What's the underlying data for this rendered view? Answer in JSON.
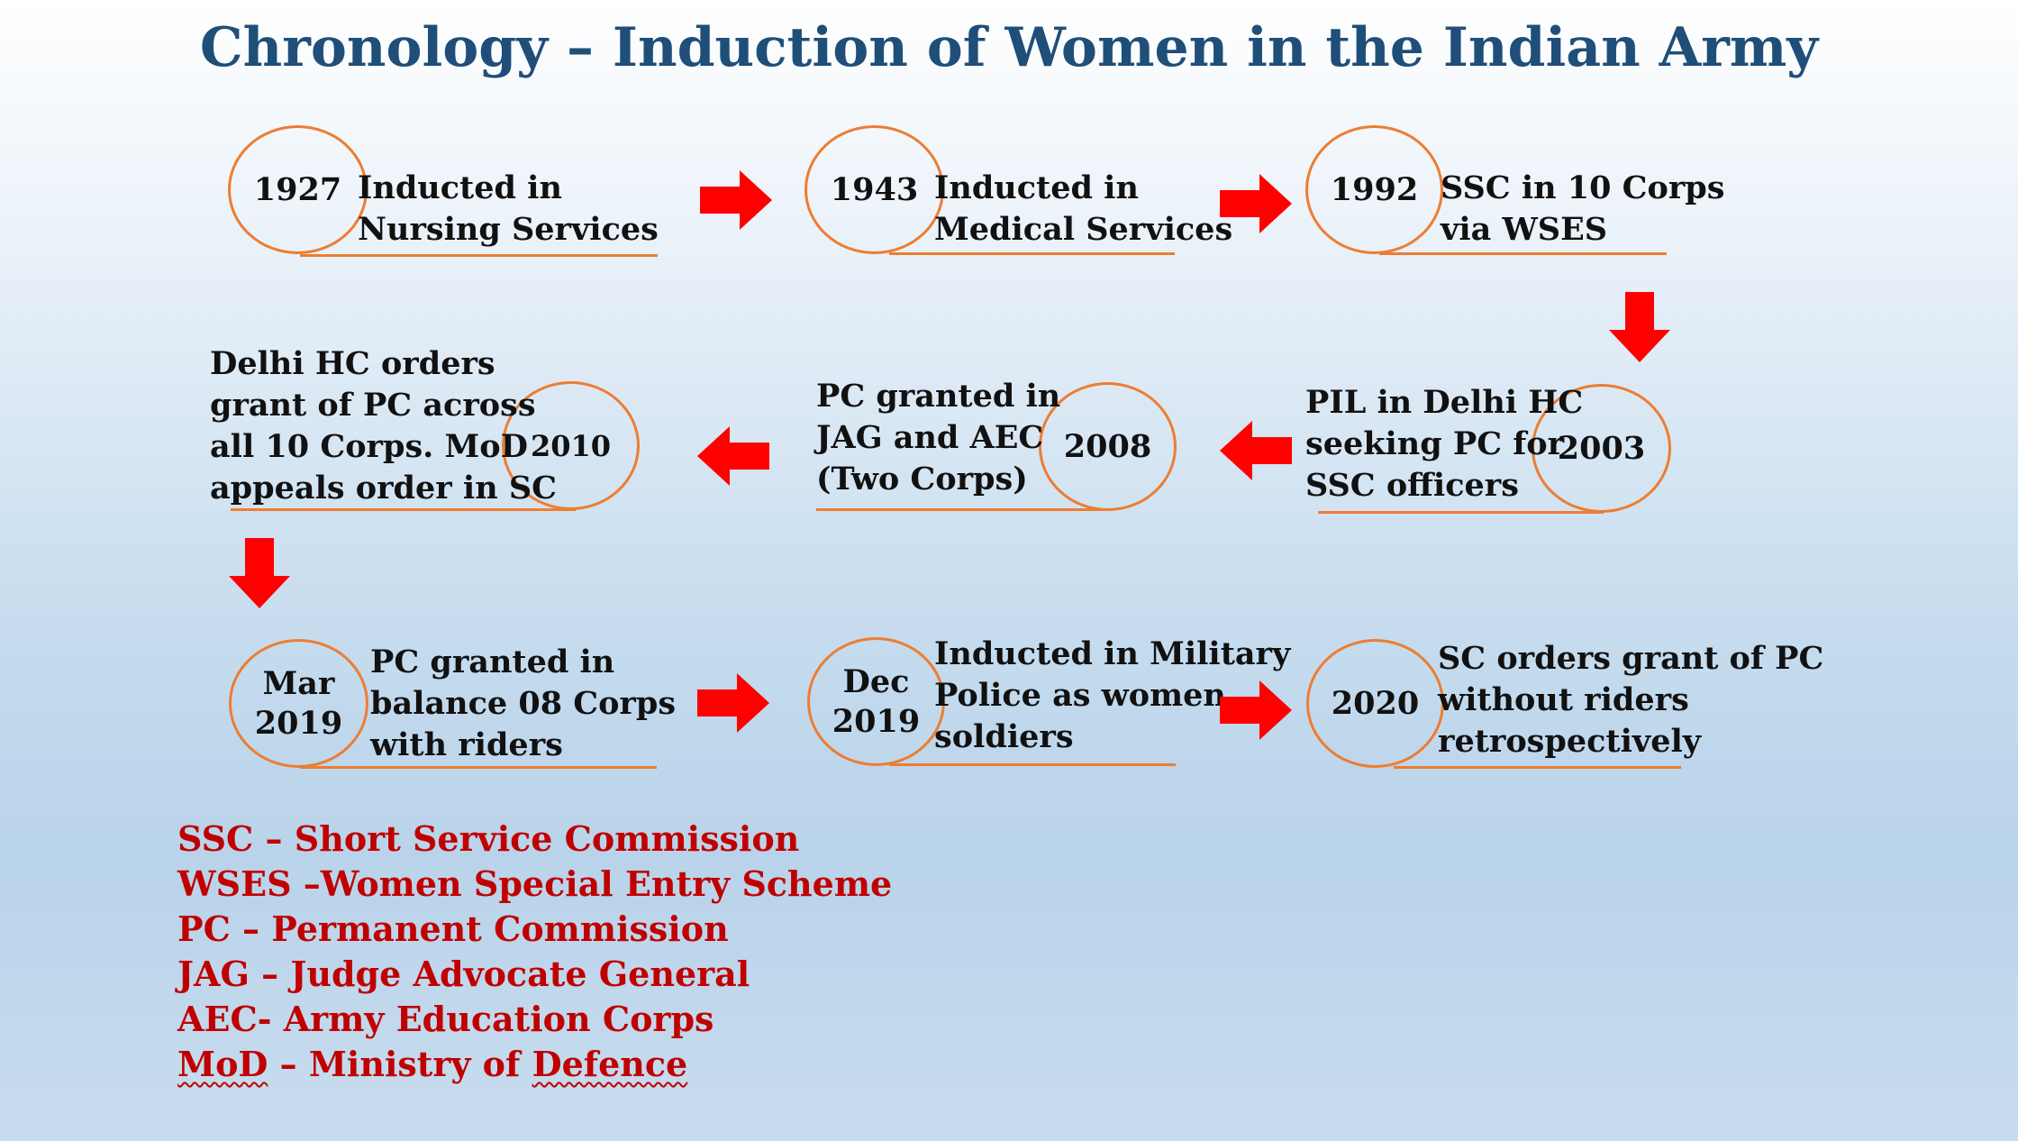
{
  "title": "Chronology – Induction of Women in the Indian Army",
  "events": [
    {
      "year": "1927",
      "text": [
        "Inducted in",
        "Nursing Services"
      ]
    },
    {
      "year": "1943",
      "text": [
        "Inducted in",
        "Medical Services"
      ]
    },
    {
      "year": "1992",
      "text": [
        "SSC in 10 Corps",
        "via WSES"
      ]
    },
    {
      "year": "2003",
      "text": [
        "PIL in Delhi HC",
        "seeking PC  for",
        "SSC officers"
      ]
    },
    {
      "year": "2008",
      "text": [
        "PC granted in",
        "JAG and AEC",
        "(Two Corps)"
      ]
    },
    {
      "year": "2010",
      "text": [
        "Delhi HC orders",
        "grant of PC across",
        "all 10 Corps. MoD",
        "appeals order in SC"
      ]
    },
    {
      "year": [
        "Mar",
        "2019"
      ],
      "text": [
        "PC granted in",
        "balance 08 Corps",
        "with riders"
      ]
    },
    {
      "year": [
        "Dec",
        "2019"
      ],
      "text": [
        "Inducted in Military",
        "Police as women",
        "soldiers"
      ]
    },
    {
      "year": "2020",
      "text": [
        "SC orders grant of PC",
        "without riders",
        "retrospectively"
      ]
    }
  ],
  "legend": [
    {
      "abbr": "SSC",
      "text": "SSC – Short Service Commission"
    },
    {
      "abbr": "WSES",
      "text": "WSES –Women Special Entry Scheme"
    },
    {
      "abbr": "PC",
      "text": "PC – Permanent Commission"
    },
    {
      "abbr": "JAG",
      "text": "JAG – Judge Advocate General"
    },
    {
      "abbr": "AEC",
      "text": "AEC- Army Education Corps"
    },
    {
      "abbr": "MoD",
      "text": "– Ministry of ",
      "prefix": "MoD",
      "suffix": "Defence"
    }
  ],
  "colors": {
    "title": "#1f4e79",
    "circle_border": "#ed7d31",
    "arrow": "#ff0000",
    "legend": "#c00000"
  }
}
